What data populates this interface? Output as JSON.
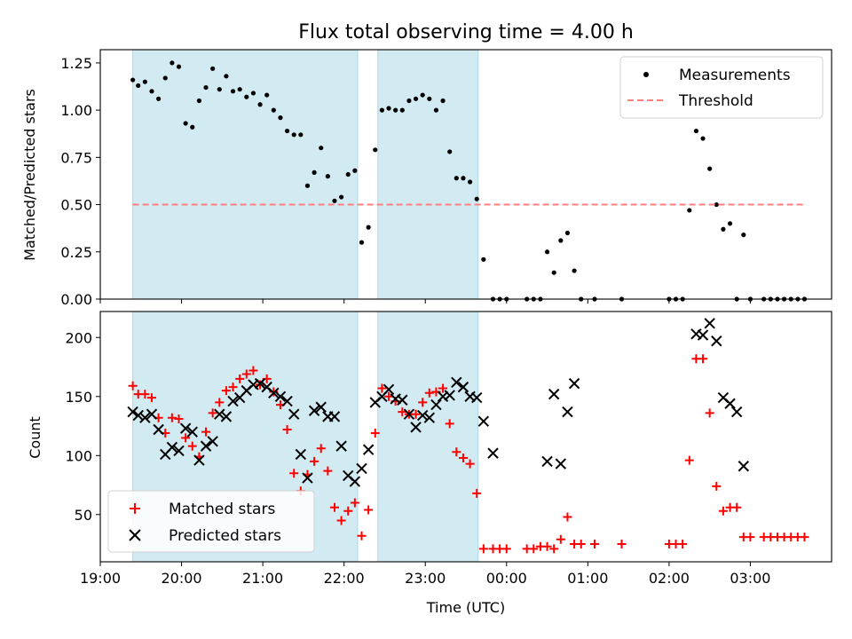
{
  "chart_data": [
    {
      "type": "scatter",
      "title": "Flux total observing time = 4.00 h",
      "xlabel": "",
      "ylabel": "Matched/Predicted stars",
      "ylim": [
        0,
        1.32
      ],
      "yticks": [
        "0.00",
        "0.25",
        "0.50",
        "0.75",
        "1.00",
        "1.25"
      ],
      "legend_position": "upper right",
      "series": [
        {
          "name": "Measurements",
          "color": "#000000",
          "marker": "dot",
          "points": [
            [
              "19:24",
              1.16
            ],
            [
              "19:28",
              1.13
            ],
            [
              "19:33",
              1.15
            ],
            [
              "19:38",
              1.1
            ],
            [
              "19:43",
              1.06
            ],
            [
              "19:48",
              1.17
            ],
            [
              "19:53",
              1.25
            ],
            [
              "19:58",
              1.23
            ],
            [
              "20:03",
              0.93
            ],
            [
              "20:08",
              0.91
            ],
            [
              "20:13",
              1.05
            ],
            [
              "20:18",
              1.12
            ],
            [
              "20:23",
              1.22
            ],
            [
              "20:28",
              1.11
            ],
            [
              "20:33",
              1.18
            ],
            [
              "20:38",
              1.1
            ],
            [
              "20:43",
              1.11
            ],
            [
              "20:48",
              1.07
            ],
            [
              "20:53",
              1.09
            ],
            [
              "20:58",
              1.03
            ],
            [
              "21:03",
              1.08
            ],
            [
              "21:08",
              1.0
            ],
            [
              "21:13",
              0.96
            ],
            [
              "21:18",
              0.89
            ],
            [
              "21:23",
              0.87
            ],
            [
              "21:28",
              0.87
            ],
            [
              "21:33",
              0.6
            ],
            [
              "21:38",
              0.67
            ],
            [
              "21:43",
              0.8
            ],
            [
              "21:48",
              0.65
            ],
            [
              "21:53",
              0.52
            ],
            [
              "21:58",
              0.54
            ],
            [
              "22:03",
              0.66
            ],
            [
              "22:08",
              0.68
            ],
            [
              "22:13",
              0.3
            ],
            [
              "22:18",
              0.38
            ],
            [
              "22:23",
              0.79
            ],
            [
              "22:28",
              1.0
            ],
            [
              "22:33",
              1.01
            ],
            [
              "22:38",
              1.0
            ],
            [
              "22:43",
              1.0
            ],
            [
              "22:48",
              1.05
            ],
            [
              "22:53",
              1.06
            ],
            [
              "22:58",
              1.08
            ],
            [
              "23:03",
              1.06
            ],
            [
              "23:08",
              1.0
            ],
            [
              "23:13",
              1.05
            ],
            [
              "23:18",
              0.78
            ],
            [
              "23:23",
              0.64
            ],
            [
              "23:28",
              0.64
            ],
            [
              "23:33",
              0.62
            ],
            [
              "23:38",
              0.53
            ],
            [
              "23:43",
              0.21
            ],
            [
              "23:50",
              0.0
            ],
            [
              "23:55",
              0.0
            ],
            [
              "00:00",
              0.0
            ],
            [
              "00:15",
              0.0
            ],
            [
              "00:20",
              0.0
            ],
            [
              "00:25",
              0.0
            ],
            [
              "00:30",
              0.25
            ],
            [
              "00:35",
              0.14
            ],
            [
              "00:40",
              0.31
            ],
            [
              "00:45",
              0.35
            ],
            [
              "00:50",
              0.15
            ],
            [
              "00:55",
              0.0
            ],
            [
              "01:05",
              0.0
            ],
            [
              "01:25",
              0.0
            ],
            [
              "02:00",
              0.0
            ],
            [
              "02:05",
              0.0
            ],
            [
              "02:10",
              0.0
            ],
            [
              "02:15",
              0.47
            ],
            [
              "02:20",
              0.89
            ],
            [
              "02:25",
              0.85
            ],
            [
              "02:30",
              0.69
            ],
            [
              "02:35",
              0.5
            ],
            [
              "02:40",
              0.37
            ],
            [
              "02:45",
              0.4
            ],
            [
              "02:50",
              0.0
            ],
            [
              "02:55",
              0.34
            ],
            [
              "03:00",
              0.0
            ],
            [
              "03:10",
              0.0
            ],
            [
              "03:15",
              0.0
            ],
            [
              "03:20",
              0.0
            ],
            [
              "03:25",
              0.0
            ],
            [
              "03:30",
              0.0
            ],
            [
              "03:35",
              0.0
            ],
            [
              "03:40",
              0.0
            ]
          ]
        },
        {
          "name": "Threshold",
          "color": "#ff7f7f",
          "style": "dashed",
          "x": [
            "19:24",
            "03:40"
          ],
          "y": [
            0.5,
            0.5
          ]
        }
      ]
    },
    {
      "type": "scatter",
      "title": "",
      "xlabel": "Time (UTC)",
      "ylabel": "Count",
      "ylim": [
        10,
        222
      ],
      "yticks": [
        "50",
        "100",
        "150",
        "200"
      ],
      "legend_position": "lower left",
      "series": [
        {
          "name": "Matched stars",
          "color": "#ff0000",
          "marker": "plus",
          "points": [
            [
              "19:24",
              159
            ],
            [
              "19:28",
              152
            ],
            [
              "19:33",
              152
            ],
            [
              "19:38",
              149
            ],
            [
              "19:43",
              132
            ],
            [
              "19:48",
              119
            ],
            [
              "19:53",
              132
            ],
            [
              "19:58",
              131
            ],
            [
              "20:03",
              115
            ],
            [
              "20:08",
              108
            ],
            [
              "20:13",
              99
            ],
            [
              "20:18",
              120
            ],
            [
              "20:23",
              136
            ],
            [
              "20:28",
              145
            ],
            [
              "20:33",
              155
            ],
            [
              "20:38",
              158
            ],
            [
              "20:43",
              165
            ],
            [
              "20:48",
              169
            ],
            [
              "20:53",
              172
            ],
            [
              "20:58",
              160
            ],
            [
              "21:03",
              165
            ],
            [
              "21:08",
              154
            ],
            [
              "21:13",
              143
            ],
            [
              "21:18",
              122
            ],
            [
              "21:23",
              85
            ],
            [
              "21:28",
              70
            ],
            [
              "21:33",
              84
            ],
            [
              "21:38",
              95
            ],
            [
              "21:43",
              106
            ],
            [
              "21:48",
              87
            ],
            [
              "21:53",
              56
            ],
            [
              "21:58",
              45
            ],
            [
              "22:03",
              53
            ],
            [
              "22:08",
              60
            ],
            [
              "22:13",
              32
            ],
            [
              "22:18",
              54
            ],
            [
              "22:23",
              119
            ],
            [
              "22:28",
              157
            ],
            [
              "22:33",
              150
            ],
            [
              "22:38",
              146
            ],
            [
              "22:43",
              137
            ],
            [
              "22:48",
              135
            ],
            [
              "22:53",
              135
            ],
            [
              "22:58",
              145
            ],
            [
              "23:03",
              153
            ],
            [
              "23:08",
              154
            ],
            [
              "23:13",
              157
            ],
            [
              "23:18",
              127
            ],
            [
              "23:23",
              103
            ],
            [
              "23:28",
              98
            ],
            [
              "23:33",
              93
            ],
            [
              "23:38",
              68
            ],
            [
              "23:43",
              21
            ],
            [
              "23:50",
              21
            ],
            [
              "23:55",
              21
            ],
            [
              "00:00",
              21
            ],
            [
              "00:15",
              21
            ],
            [
              "00:20",
              21
            ],
            [
              "00:25",
              23
            ],
            [
              "00:30",
              23
            ],
            [
              "00:35",
              21
            ],
            [
              "00:40",
              29
            ],
            [
              "00:45",
              48
            ],
            [
              "00:50",
              25
            ],
            [
              "00:55",
              25
            ],
            [
              "01:05",
              25
            ],
            [
              "01:25",
              25
            ],
            [
              "02:00",
              25
            ],
            [
              "02:05",
              25
            ],
            [
              "02:10",
              25
            ],
            [
              "02:15",
              96
            ],
            [
              "02:20",
              182
            ],
            [
              "02:25",
              182
            ],
            [
              "02:30",
              136
            ],
            [
              "02:35",
              74
            ],
            [
              "02:40",
              53
            ],
            [
              "02:45",
              56
            ],
            [
              "02:50",
              56
            ],
            [
              "02:55",
              31
            ],
            [
              "03:00",
              31
            ],
            [
              "03:10",
              31
            ],
            [
              "03:15",
              31
            ],
            [
              "03:20",
              31
            ],
            [
              "03:25",
              31
            ],
            [
              "03:30",
              31
            ],
            [
              "03:35",
              31
            ],
            [
              "03:40",
              31
            ]
          ]
        },
        {
          "name": "Predicted stars",
          "color": "#000000",
          "marker": "x",
          "points": [
            [
              "19:24",
              137
            ],
            [
              "19:28",
              134
            ],
            [
              "19:33",
              132
            ],
            [
              "19:38",
              135
            ],
            [
              "19:43",
              122
            ],
            [
              "19:48",
              101
            ],
            [
              "19:53",
              107
            ],
            [
              "19:58",
              104
            ],
            [
              "20:03",
              123
            ],
            [
              "20:08",
              120
            ],
            [
              "20:13",
              96
            ],
            [
              "20:18",
              108
            ],
            [
              "20:23",
              112
            ],
            [
              "20:28",
              135
            ],
            [
              "20:33",
              133
            ],
            [
              "20:38",
              146
            ],
            [
              "20:43",
              149
            ],
            [
              "20:48",
              155
            ],
            [
              "20:53",
              160
            ],
            [
              "20:58",
              161
            ],
            [
              "21:03",
              158
            ],
            [
              "21:08",
              153
            ],
            [
              "21:13",
              150
            ],
            [
              "21:18",
              146
            ],
            [
              "21:23",
              135
            ],
            [
              "21:28",
              101
            ],
            [
              "21:33",
              81
            ],
            [
              "21:38",
              138
            ],
            [
              "21:43",
              141
            ],
            [
              "21:48",
              133
            ],
            [
              "21:53",
              133
            ],
            [
              "21:58",
              108
            ],
            [
              "22:03",
              83
            ],
            [
              "22:08",
              78
            ],
            [
              "22:13",
              89
            ],
            [
              "22:18",
              105
            ],
            [
              "22:23",
              145
            ],
            [
              "22:28",
              150
            ],
            [
              "22:33",
              156
            ],
            [
              "22:38",
              148
            ],
            [
              "22:43",
              147
            ],
            [
              "22:48",
              135
            ],
            [
              "22:53",
              124
            ],
            [
              "22:58",
              134
            ],
            [
              "23:03",
              132
            ],
            [
              "23:08",
              143
            ],
            [
              "23:13",
              150
            ],
            [
              "23:18",
              151
            ],
            [
              "23:23",
              162
            ],
            [
              "23:28",
              158
            ],
            [
              "23:33",
              150
            ],
            [
              "23:38",
              149
            ],
            [
              "23:43",
              129
            ],
            [
              "23:50",
              102
            ],
            [
              "00:30",
              95
            ],
            [
              "00:35",
              152
            ],
            [
              "00:40",
              93
            ],
            [
              "00:45",
              137
            ],
            [
              "00:50",
              161
            ],
            [
              "02:20",
              203
            ],
            [
              "02:25",
              202
            ],
            [
              "02:30",
              212
            ],
            [
              "02:35",
              197
            ],
            [
              "02:40",
              149
            ],
            [
              "02:45",
              144
            ],
            [
              "02:50",
              137
            ],
            [
              "02:55",
              91
            ]
          ]
        }
      ]
    }
  ],
  "x_axis": {
    "range": [
      "19:00",
      "04:00"
    ],
    "ticks": [
      "19:00",
      "20:00",
      "21:00",
      "22:00",
      "23:00",
      "00:00",
      "01:00",
      "02:00",
      "03:00"
    ]
  },
  "shaded_intervals": {
    "color": "#add8e6",
    "ranges": [
      [
        "19:24",
        "22:10"
      ],
      [
        "22:25",
        "23:39"
      ]
    ]
  },
  "legend_marker_names": [
    "dot-marker-icon",
    "dashed-line-icon",
    "plus-marker-icon",
    "x-marker-icon"
  ]
}
